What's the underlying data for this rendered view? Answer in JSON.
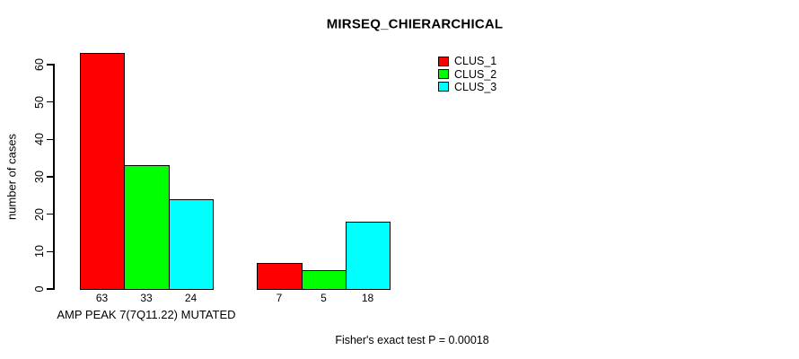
{
  "title": "MIRSEQ_CHIERARCHICAL",
  "chart_data": {
    "type": "bar",
    "title": "MIRSEQ_CHIERARCHICAL",
    "xlabel": "",
    "ylabel": "number of cases",
    "ylim": [
      0,
      60
    ],
    "yticks": [
      0,
      10,
      20,
      30,
      40,
      50,
      60
    ],
    "grid": false,
    "legend_position": "top-right",
    "series": [
      {
        "name": "CLUS_1",
        "color": "#ff0000"
      },
      {
        "name": "CLUS_2",
        "color": "#00ff00"
      },
      {
        "name": "CLUS_3",
        "color": "#00ffff"
      }
    ],
    "groups": [
      {
        "label": "AMP PEAK  7(7Q11.22) MUTATED",
        "values": [
          63,
          33,
          24
        ]
      },
      {
        "label": "",
        "values": [
          7,
          5,
          18
        ]
      }
    ],
    "bar_value_labels": [
      [
        "63",
        "33",
        "24"
      ],
      [
        "7",
        "5",
        "18"
      ]
    ],
    "annotation": "Fisher's exact test P = 0.00018"
  }
}
